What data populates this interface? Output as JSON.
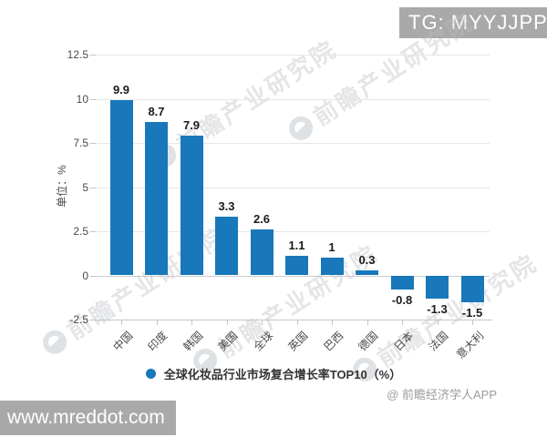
{
  "badges": {
    "tg": "TG: MYYJJPP",
    "site": "www.mreddot.com"
  },
  "credit": "@ 前瞻经济学人APP",
  "watermark_text": "前瞻产业研究院",
  "chart_data": {
    "type": "bar",
    "title": "",
    "categories": [
      "中国",
      "印度",
      "韩国",
      "美国",
      "全球",
      "英国",
      "巴西",
      "德国",
      "日本",
      "法国",
      "意大利"
    ],
    "values": [
      9.9,
      8.7,
      7.9,
      3.3,
      2.6,
      1.1,
      1,
      0.3,
      -0.8,
      -1.3,
      -1.5
    ],
    "value_labels": [
      "9.9",
      "8.7",
      "7.9",
      "3.3",
      "2.6",
      "1.1",
      "1",
      "0.3",
      "-0.8",
      "-1.3",
      "-1.5"
    ],
    "ylabel": "单位：%",
    "xlabel": "",
    "yticks": [
      12.5,
      10,
      7.5,
      5,
      2.5,
      0,
      -2.5
    ],
    "ylim": [
      -2.5,
      12.5
    ],
    "grid": true,
    "legend": "全球化妆品行业市场复合增长率TOP10（%）",
    "legend_position": "bottom",
    "bar_color": "#1878ba"
  }
}
